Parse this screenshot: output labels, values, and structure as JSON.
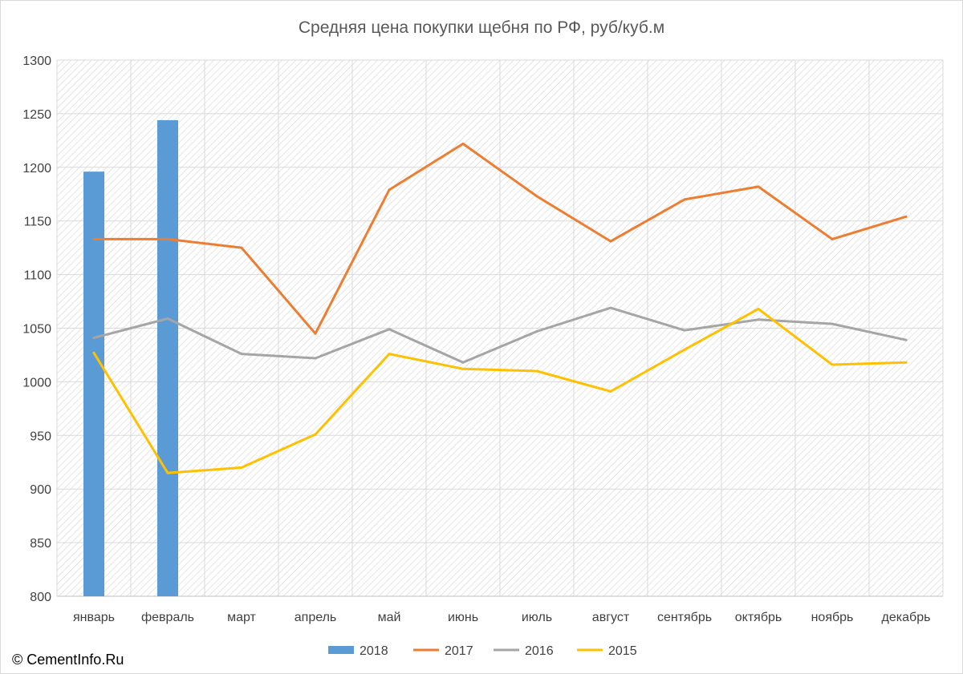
{
  "chart_data": {
    "type": "bar+line",
    "title": "Средняя цена покупки щебня по РФ, руб/куб.м",
    "categories": [
      "январь",
      "февраль",
      "март",
      "апрель",
      "май",
      "июнь",
      "июль",
      "август",
      "сентябрь",
      "октябрь",
      "ноябрь",
      "декабрь"
    ],
    "ylim": [
      800,
      1300
    ],
    "yticks": [
      800,
      850,
      900,
      950,
      1000,
      1050,
      1100,
      1150,
      1200,
      1250,
      1300
    ],
    "grid": true,
    "legend_position": "bottom",
    "series": [
      {
        "name": "2018",
        "type": "bar",
        "color": "#5b9bd5",
        "values": [
          1196,
          1244,
          null,
          null,
          null,
          null,
          null,
          null,
          null,
          null,
          null,
          null
        ]
      },
      {
        "name": "2017",
        "type": "line",
        "color": "#ed7d31",
        "values": [
          1133,
          1133,
          1125,
          1045,
          1179,
          1222,
          1173,
          1131,
          1170,
          1182,
          1133,
          1154
        ]
      },
      {
        "name": "2016",
        "type": "line",
        "color": "#a5a5a5",
        "values": [
          1041,
          1059,
          1026,
          1022,
          1049,
          1018,
          1047,
          1069,
          1048,
          1058,
          1054,
          1039
        ]
      },
      {
        "name": "2015",
        "type": "line",
        "color": "#ffc000",
        "values": [
          1027,
          915,
          920,
          951,
          1026,
          1012,
          1010,
          991,
          1030,
          1068,
          1016,
          1018
        ]
      }
    ]
  },
  "footer": {
    "copyright": "© CementInfo.Ru"
  }
}
